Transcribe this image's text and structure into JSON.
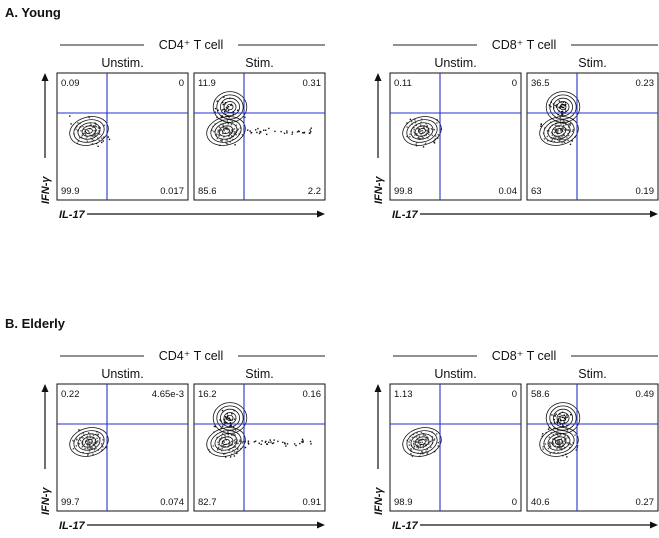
{
  "sections": [
    {
      "title": "A. Young",
      "groups": [
        {
          "label": "CD4⁺ T cell",
          "y_axis": "IFN-γ",
          "x_axis": "IL-17",
          "panels": [
            {
              "subtitle": "Unstim.",
              "quadrants": {
                "ul": "0.09",
                "ur": "0",
                "ll": "99.9",
                "lr": "0.017"
              }
            },
            {
              "subtitle": "Stim.",
              "quadrants": {
                "ul": "11.9",
                "ur": "0.31",
                "ll": "85.6",
                "lr": "2.2"
              }
            }
          ]
        },
        {
          "label": "CD8⁺ T cell",
          "y_axis": "IFN-γ",
          "x_axis": "IL-17",
          "panels": [
            {
              "subtitle": "Unstim.",
              "quadrants": {
                "ul": "0.11",
                "ur": "0",
                "ll": "99.8",
                "lr": "0.04"
              }
            },
            {
              "subtitle": "Stim.",
              "quadrants": {
                "ul": "36.5",
                "ur": "0.23",
                "ll": "63",
                "lr": "0.19"
              }
            }
          ]
        }
      ]
    },
    {
      "title": "B. Elderly",
      "groups": [
        {
          "label": "CD4⁺ T cell",
          "y_axis": "IFN-γ",
          "x_axis": "IL-17",
          "panels": [
            {
              "subtitle": "Unstim.",
              "quadrants": {
                "ul": "0.22",
                "ur": "4.65e-3",
                "ll": "99.7",
                "lr": "0.074"
              }
            },
            {
              "subtitle": "Stim.",
              "quadrants": {
                "ul": "16.2",
                "ur": "0.16",
                "ll": "82.7",
                "lr": "0.91"
              }
            }
          ]
        },
        {
          "label": "CD8⁺ T cell",
          "y_axis": "IFN-γ",
          "x_axis": "IL-17",
          "panels": [
            {
              "subtitle": "Unstim.",
              "quadrants": {
                "ul": "1.13",
                "ur": "0",
                "ll": "98.9",
                "lr": "0"
              }
            },
            {
              "subtitle": "Stim.",
              "quadrants": {
                "ul": "58.6",
                "ur": "0.49",
                "ll": "40.6",
                "lr": "0.27"
              }
            }
          ]
        }
      ]
    }
  ]
}
